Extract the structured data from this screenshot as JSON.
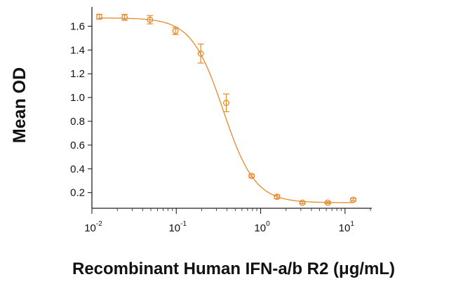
{
  "chart_data": {
    "type": "scatter",
    "title": "",
    "xlabel": "Recombinant Human IFN-a/b R2 (μg/mL)",
    "ylabel": "Mean OD",
    "x_scale": "log",
    "xlim": [
      0.01,
      20
    ],
    "ylim": [
      0.08,
      1.75
    ],
    "x_ticks": [
      {
        "value": 0.01,
        "base": "10",
        "exp": "-2"
      },
      {
        "value": 0.1,
        "base": "10",
        "exp": "-1"
      },
      {
        "value": 1,
        "base": "10",
        "exp": "0"
      },
      {
        "value": 10,
        "base": "10",
        "exp": "1"
      }
    ],
    "y_ticks": [
      {
        "value": 0.2,
        "label": "0.2"
      },
      {
        "value": 0.4,
        "label": "0.4"
      },
      {
        "value": 0.6,
        "label": "0.6"
      },
      {
        "value": 0.8,
        "label": "0.8"
      },
      {
        "value": 1.0,
        "label": "1.0"
      },
      {
        "value": 1.2,
        "label": "1.2"
      },
      {
        "value": 1.4,
        "label": "1.4"
      },
      {
        "value": 1.6,
        "label": "1.6"
      }
    ],
    "grid": false,
    "color": "#e8892b",
    "points": [
      {
        "x": 0.0122,
        "y": 1.68,
        "err": 0.02
      },
      {
        "x": 0.0244,
        "y": 1.675,
        "err": 0.025
      },
      {
        "x": 0.0488,
        "y": 1.655,
        "err": 0.035
      },
      {
        "x": 0.0977,
        "y": 1.56,
        "err": 0.03
      },
      {
        "x": 0.195,
        "y": 1.37,
        "err": 0.08
      },
      {
        "x": 0.391,
        "y": 0.955,
        "err": 0.075
      },
      {
        "x": 0.781,
        "y": 0.34,
        "err": 0.01
      },
      {
        "x": 1.5625,
        "y": 0.165,
        "err": 0.015
      },
      {
        "x": 3.125,
        "y": 0.115,
        "err": 0.008
      },
      {
        "x": 6.25,
        "y": 0.115,
        "err": 0.008
      },
      {
        "x": 12.5,
        "y": 0.14,
        "err": 0.01
      }
    ],
    "fit": {
      "model": "4PL",
      "top": 1.67,
      "bottom": 0.115,
      "ec50": 0.36,
      "hill": 2.3
    }
  }
}
